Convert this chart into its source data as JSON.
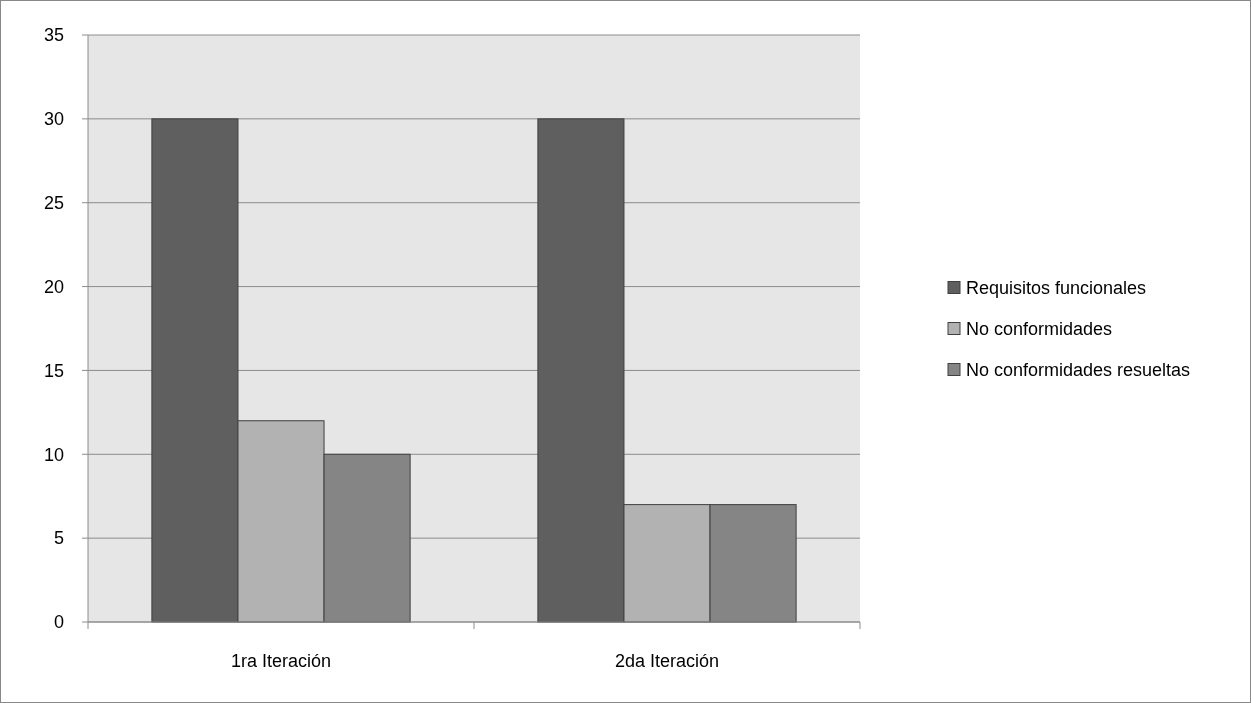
{
  "chart_data": {
    "type": "bar",
    "categories": [
      "1ra Iteración",
      "2da Iteración"
    ],
    "series": [
      {
        "name": "Requisitos funcionales",
        "color": "#5f5f5f",
        "values": [
          30,
          30
        ]
      },
      {
        "name": "No conformidades",
        "color": "#b2b2b2",
        "values": [
          12,
          7
        ]
      },
      {
        "name": "No conformidades resueltas",
        "color": "#858585",
        "values": [
          10,
          7
        ]
      }
    ],
    "ylim": [
      0,
      35
    ],
    "yticks": [
      0,
      5,
      10,
      15,
      20,
      25,
      30,
      35
    ],
    "grid": "y",
    "legend": "right"
  }
}
